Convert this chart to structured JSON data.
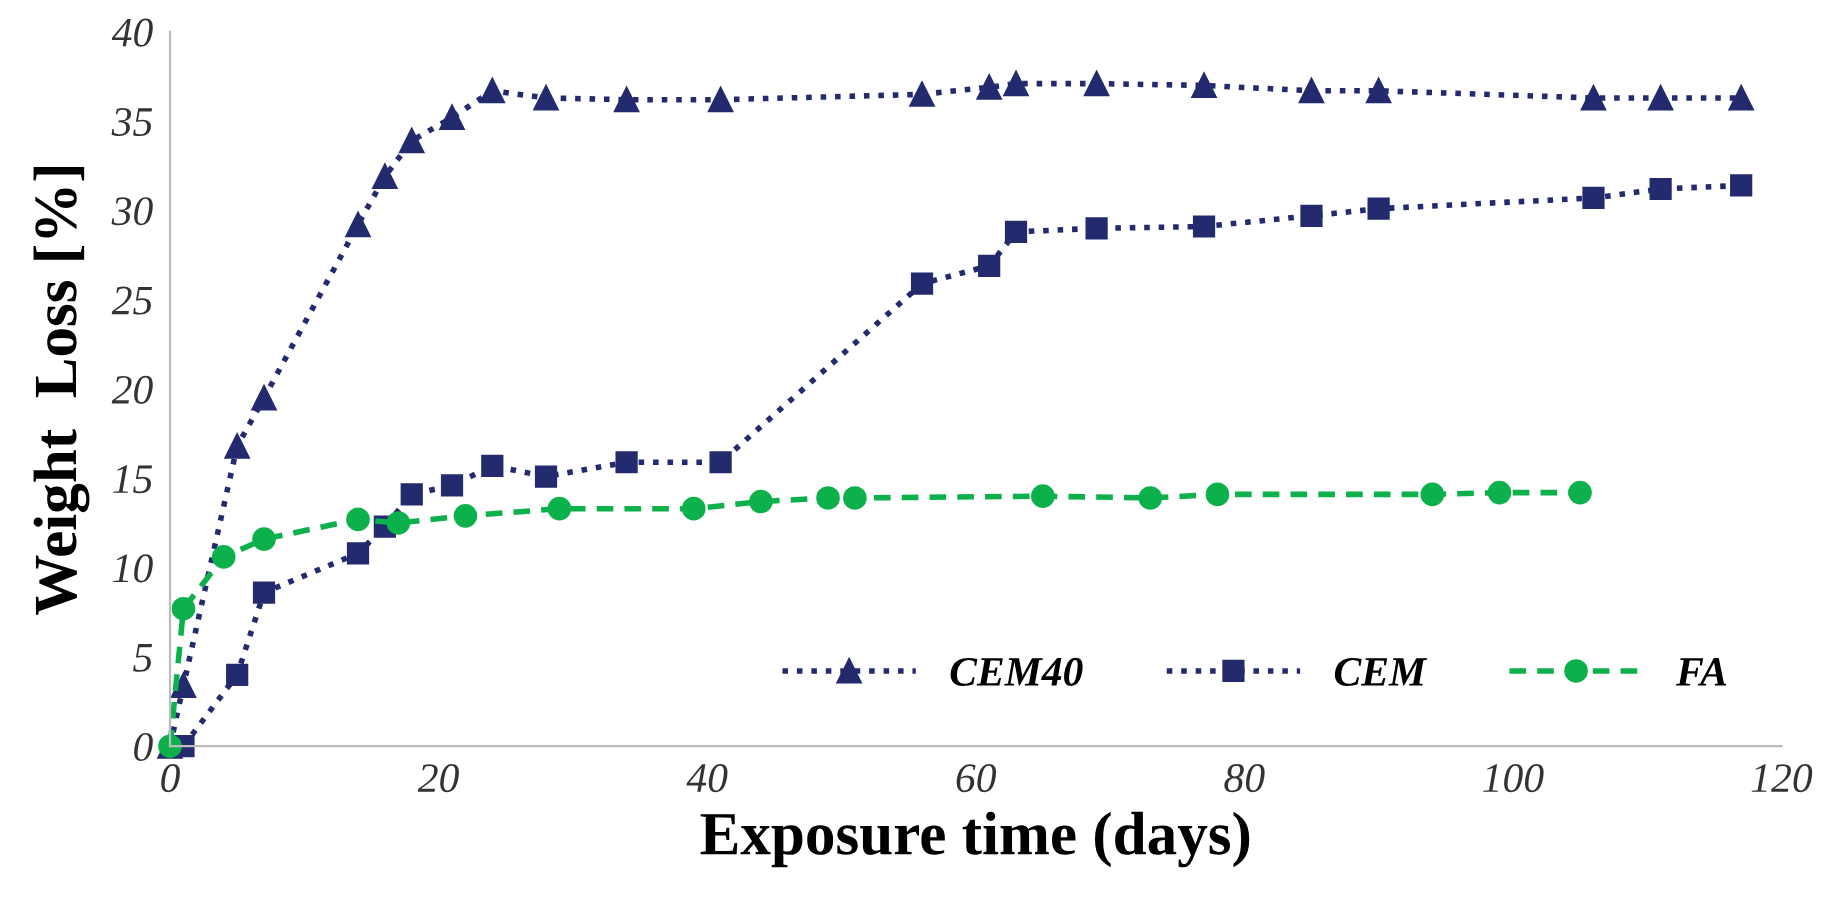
{
  "chart_data": {
    "type": "line",
    "xlabel": "Exposure time (days)",
    "ylabel": "Weight  Loss [%]",
    "xlim": [
      0,
      120
    ],
    "xticks": [
      0,
      20,
      40,
      60,
      80,
      100,
      120
    ],
    "ylim": [
      0,
      40
    ],
    "yticks": [
      0,
      5,
      10,
      15,
      20,
      25,
      30,
      35,
      40
    ],
    "grid": false,
    "legend": "bottom right",
    "series": [
      {
        "name": "CEM40",
        "color": "#232a6e",
        "marker": "triangle",
        "line_style": "dotted",
        "x": [
          0,
          1,
          5,
          7,
          14,
          16,
          18,
          21,
          24,
          28,
          34,
          41,
          56,
          61,
          63,
          69,
          77,
          85,
          90,
          106,
          111,
          117
        ],
        "values": [
          0,
          3.4,
          16.8,
          19.5,
          29.2,
          31.9,
          33.9,
          35.2,
          36.7,
          36.3,
          36.2,
          36.2,
          36.5,
          36.9,
          37.1,
          37.1,
          37.0,
          36.7,
          36.7,
          36.3,
          36.3,
          36.3
        ]
      },
      {
        "name": "CEM",
        "color": "#232a6e",
        "marker": "square",
        "line_style": "dotted",
        "x": [
          1,
          5,
          7,
          14,
          16,
          18,
          21,
          24,
          28,
          34,
          41,
          56,
          61,
          63,
          69,
          77,
          85,
          90,
          106,
          111,
          117
        ],
        "values": [
          0,
          4.0,
          8.6,
          10.8,
          12.3,
          14.1,
          14.6,
          15.7,
          15.1,
          15.9,
          15.9,
          25.9,
          26.9,
          28.8,
          29.0,
          29.1,
          29.7,
          30.1,
          30.7,
          31.2,
          31.4
        ]
      },
      {
        "name": "FA",
        "color": "#0db14b",
        "marker": "circle",
        "line_style": "dashed",
        "x": [
          0,
          1,
          4,
          7,
          14,
          17,
          22,
          29,
          39,
          44,
          49,
          51,
          65,
          73,
          78,
          94,
          99,
          105
        ],
        "values": [
          0,
          7.7,
          10.6,
          11.6,
          12.7,
          12.5,
          12.9,
          13.3,
          13.3,
          13.7,
          13.9,
          13.9,
          14.0,
          13.9,
          14.1,
          14.1,
          14.2,
          14.2
        ]
      }
    ]
  }
}
